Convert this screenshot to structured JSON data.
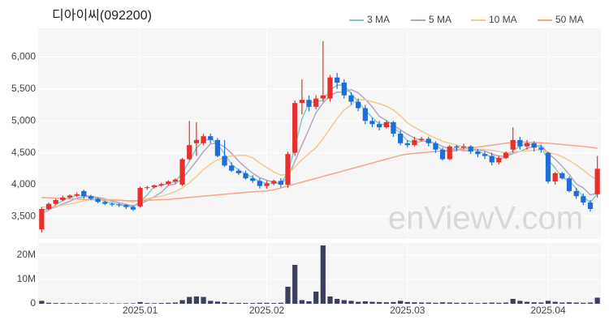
{
  "chart_data": [
    {
      "type": "candlestick",
      "title": "디아이씨(092200)",
      "watermark": "enViewV.com",
      "up_color": "#e8302a",
      "down_color": "#1d6fd8",
      "grid": true,
      "legend": "top-right",
      "open": [
        3300,
        3620,
        3700,
        3760,
        3800,
        3830,
        3900,
        3820,
        3780,
        3730,
        3700,
        3690,
        3680,
        3650,
        3660,
        3950,
        3960,
        3990,
        4010,
        4050,
        4000,
        4400,
        4650,
        4650,
        4760,
        4700,
        4450,
        4300,
        4220,
        4180,
        4100,
        4060,
        3980,
        4020,
        4060,
        4000,
        4500,
        5280,
        5330,
        5220,
        5350,
        5350,
        5680,
        5600,
        5400,
        5300,
        5200,
        5000,
        4950,
        4900,
        4980,
        4800,
        4650,
        4620,
        4700,
        4720,
        4650,
        4550,
        4400,
        4600,
        4580,
        4600,
        4520,
        4480,
        4450,
        4350,
        4420,
        4550,
        4700,
        4600,
        4650,
        4580,
        4500,
        4050,
        4180,
        4100,
        3900,
        3820,
        3720,
        3850
      ],
      "high": [
        3650,
        3720,
        3780,
        3830,
        3850,
        3880,
        3920,
        3840,
        3800,
        3750,
        3720,
        3710,
        3700,
        3670,
        3970,
        3980,
        4000,
        4030,
        4070,
        4100,
        4420,
        5000,
        4980,
        4800,
        4800,
        4730,
        4700,
        4350,
        4250,
        4220,
        4150,
        4100,
        4060,
        4080,
        4100,
        4520,
        5320,
        5650,
        5400,
        5400,
        6250,
        5720,
        5750,
        5650,
        5450,
        5350,
        5250,
        5050,
        5000,
        5000,
        5000,
        4850,
        4700,
        4750,
        4750,
        4750,
        4680,
        4580,
        4620,
        4620,
        4640,
        4620,
        4560,
        4520,
        4500,
        4450,
        4520,
        4900,
        4750,
        4700,
        4680,
        4620,
        4520,
        4200,
        4200,
        4130,
        3950,
        3860,
        3760,
        4450
      ],
      "low": [
        3250,
        3600,
        3680,
        3740,
        3780,
        3810,
        3780,
        3760,
        3710,
        3680,
        3660,
        3650,
        3620,
        3590,
        3640,
        3920,
        3940,
        3970,
        3990,
        4020,
        3980,
        4380,
        4450,
        4620,
        4650,
        4430,
        4280,
        4200,
        4150,
        4080,
        4030,
        3940,
        3940,
        3990,
        3960,
        3950,
        4450,
        5100,
        5150,
        5180,
        5300,
        5300,
        5500,
        5350,
        5250,
        5150,
        4950,
        4900,
        4850,
        4880,
        4750,
        4620,
        4580,
        4600,
        4680,
        4600,
        4500,
        4380,
        4380,
        4530,
        4550,
        4480,
        4430,
        4400,
        4300,
        4320,
        4400,
        4500,
        4550,
        4550,
        4520,
        4500,
        4020,
        4000,
        4080,
        3880,
        3780,
        3680,
        3580,
        3800
      ],
      "close": [
        3620,
        3700,
        3760,
        3800,
        3830,
        3850,
        3820,
        3780,
        3730,
        3700,
        3690,
        3680,
        3650,
        3610,
        3950,
        3960,
        3990,
        4010,
        4050,
        4080,
        4400,
        4620,
        4700,
        4760,
        4700,
        4450,
        4300,
        4220,
        4180,
        4100,
        4060,
        3980,
        4020,
        4060,
        4000,
        4480,
        5280,
        5330,
        5220,
        5350,
        5400,
        5680,
        5600,
        5400,
        5300,
        5200,
        5000,
        4950,
        4900,
        4980,
        4800,
        4650,
        4620,
        4700,
        4720,
        4650,
        4550,
        4400,
        4600,
        4580,
        4600,
        4520,
        4480,
        4450,
        4350,
        4420,
        4500,
        4700,
        4600,
        4650,
        4580,
        4550,
        4050,
        4180,
        4100,
        3900,
        3820,
        3720,
        3620,
        4250
      ],
      "series": [
        {
          "name": "3 MA",
          "color": "#7ecbd0",
          "values": [
            3550,
            3600,
            3690,
            3750,
            3800,
            3830,
            3830,
            3820,
            3780,
            3740,
            3710,
            3690,
            3670,
            3650,
            3740,
            3840,
            3970,
            3990,
            4020,
            4050,
            4180,
            4370,
            4570,
            4690,
            4720,
            4640,
            4480,
            4320,
            4230,
            4170,
            4110,
            4050,
            4020,
            4020,
            4030,
            4180,
            4590,
            5030,
            5280,
            5300,
            5320,
            5480,
            5560,
            5560,
            5430,
            5300,
            5170,
            5050,
            4950,
            4940,
            4890,
            4810,
            4690,
            4660,
            4680,
            4690,
            4640,
            4530,
            4520,
            4530,
            4590,
            4570,
            4530,
            4480,
            4430,
            4410,
            4420,
            4540,
            4600,
            4650,
            4610,
            4590,
            4390,
            4260,
            4110,
            4060,
            3940,
            3810,
            3720,
            3860
          ]
        },
        {
          "name": "5 MA",
          "color": "#b5a3c8",
          "values": [
            3600,
            3620,
            3650,
            3700,
            3740,
            3790,
            3810,
            3820,
            3800,
            3780,
            3740,
            3720,
            3690,
            3670,
            3700,
            3750,
            3810,
            3880,
            3990,
            4010,
            4100,
            4230,
            4370,
            4520,
            4640,
            4650,
            4590,
            4490,
            4370,
            4270,
            4180,
            4110,
            4070,
            4040,
            4020,
            4110,
            4370,
            4620,
            4870,
            5130,
            5280,
            5400,
            5450,
            5450,
            5490,
            5440,
            5340,
            5220,
            5070,
            5010,
            4930,
            4860,
            4790,
            4730,
            4690,
            4670,
            4650,
            4600,
            4560,
            4560,
            4530,
            4540,
            4550,
            4530,
            4480,
            4450,
            4440,
            4490,
            4520,
            4570,
            4600,
            4620,
            4490,
            4400,
            4290,
            4160,
            4010,
            3950,
            3840,
            3870
          ]
        },
        {
          "name": "10 MA",
          "color": "#f2c98e",
          "values": [
            3650,
            3650,
            3660,
            3680,
            3700,
            3720,
            3750,
            3770,
            3780,
            3770,
            3770,
            3760,
            3750,
            3730,
            3760,
            3780,
            3800,
            3820,
            3850,
            3890,
            3950,
            4030,
            4130,
            4240,
            4320,
            4390,
            4430,
            4450,
            4460,
            4460,
            4420,
            4340,
            4270,
            4200,
            4150,
            4160,
            4280,
            4390,
            4490,
            4580,
            4720,
            4880,
            5040,
            5170,
            5250,
            5330,
            5330,
            5300,
            5270,
            5230,
            5170,
            5080,
            4970,
            4900,
            4840,
            4780,
            4730,
            4680,
            4650,
            4620,
            4590,
            4580,
            4560,
            4550,
            4540,
            4520,
            4500,
            4510,
            4520,
            4530,
            4540,
            4550,
            4500,
            4480,
            4440,
            4380,
            4310,
            4230,
            4140,
            4080
          ]
        },
        {
          "name": "50 MA",
          "color": "#f4a58a",
          "values": [
            3800,
            3795,
            3790,
            3785,
            3780,
            3775,
            3770,
            3765,
            3760,
            3760,
            3755,
            3755,
            3750,
            3750,
            3750,
            3755,
            3760,
            3765,
            3770,
            3780,
            3790,
            3800,
            3810,
            3820,
            3830,
            3840,
            3850,
            3860,
            3870,
            3880,
            3890,
            3895,
            3900,
            3920,
            3950,
            3980,
            4010,
            4040,
            4070,
            4100,
            4130,
            4160,
            4190,
            4220,
            4250,
            4280,
            4310,
            4340,
            4370,
            4400,
            4430,
            4460,
            4480,
            4490,
            4500,
            4510,
            4520,
            4530,
            4540,
            4550,
            4560,
            4575,
            4590,
            4605,
            4620,
            4635,
            4650,
            4660,
            4670,
            4665,
            4660,
            4655,
            4650,
            4640,
            4630,
            4620,
            4610,
            4600,
            4585,
            4570
          ]
        }
      ],
      "ylim": [
        3150,
        6450
      ],
      "yticks": [
        {
          "value": 3500,
          "label": "3,500"
        },
        {
          "value": 4000,
          "label": "4,000"
        },
        {
          "value": 4500,
          "label": "4,500"
        },
        {
          "value": 5000,
          "label": "5,000"
        },
        {
          "value": 5500,
          "label": "5,500"
        },
        {
          "value": 6000,
          "label": "6,000"
        }
      ]
    },
    {
      "type": "bar",
      "color": "#3d3f5e",
      "categories": [
        null,
        null,
        null,
        null,
        null,
        null,
        null,
        null,
        null,
        null,
        null,
        null,
        null,
        null,
        "2025.01",
        null,
        null,
        null,
        null,
        null,
        null,
        null,
        null,
        null,
        null,
        null,
        null,
        null,
        null,
        null,
        null,
        null,
        "2025.02",
        null,
        null,
        null,
        null,
        null,
        null,
        null,
        null,
        null,
        null,
        null,
        null,
        null,
        null,
        null,
        null,
        null,
        null,
        null,
        "2025.03",
        null,
        null,
        null,
        null,
        null,
        null,
        null,
        null,
        null,
        null,
        null,
        null,
        null,
        null,
        null,
        null,
        null,
        null,
        null,
        "2025.04",
        null,
        null,
        null,
        null,
        null,
        null,
        null
      ],
      "values": [
        1200000,
        400000,
        300000,
        300000,
        250000,
        250000,
        300000,
        250000,
        200000,
        200000,
        200000,
        150000,
        200000,
        200000,
        700000,
        300000,
        250000,
        300000,
        400000,
        500000,
        1500000,
        2800000,
        3000000,
        2800000,
        1200000,
        900000,
        600000,
        400000,
        350000,
        300000,
        300000,
        400000,
        400000,
        300000,
        400000,
        7000000,
        16000000,
        1500000,
        1000000,
        5000000,
        24000000,
        3000000,
        2000000,
        1500000,
        1200000,
        800000,
        1000000,
        800000,
        700000,
        600000,
        700000,
        1200000,
        700000,
        600000,
        500000,
        500000,
        400000,
        600000,
        500000,
        400000,
        400000,
        400000,
        300000,
        400000,
        500000,
        400000,
        500000,
        2000000,
        1200000,
        800000,
        600000,
        500000,
        1200000,
        800000,
        500000,
        600000,
        500000,
        400000,
        500000,
        2500000
      ],
      "ylim": [
        0,
        25000000
      ],
      "yticks": [
        0,
        {
          "value": 10000000,
          "label": "10M"
        },
        {
          "value": 20000000,
          "label": "20M"
        }
      ]
    }
  ]
}
